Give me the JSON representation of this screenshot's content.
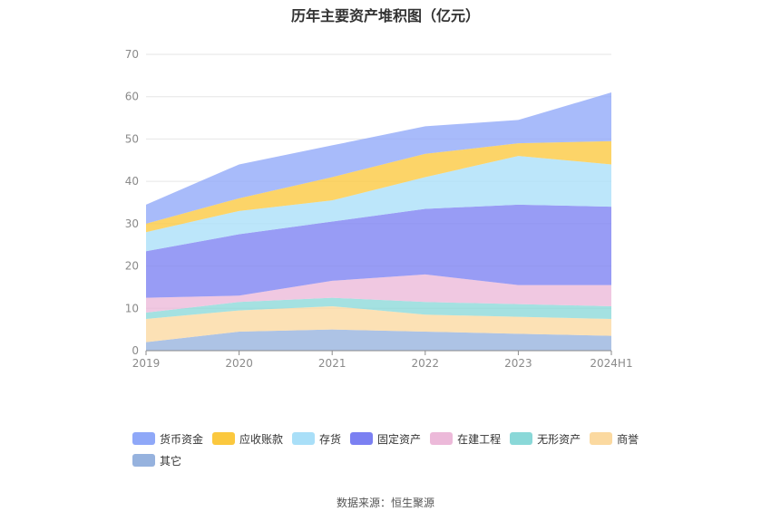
{
  "chart_data": {
    "type": "area",
    "title": "历年主要资产堆积图（亿元）",
    "stacked": true,
    "categories": [
      "2019",
      "2020",
      "2021",
      "2022",
      "2023",
      "2024H1"
    ],
    "ylim": [
      0,
      70
    ],
    "yticks": [
      0,
      10,
      20,
      30,
      40,
      50,
      60,
      70
    ],
    "grid": true,
    "legend_position": "bottom",
    "series": [
      {
        "name": "货币资金",
        "color": "#8fa8f8",
        "values": [
          4.5,
          8.0,
          7.5,
          6.5,
          5.5,
          11.5
        ]
      },
      {
        "name": "应收账款",
        "color": "#fbc83e",
        "values": [
          2.0,
          3.0,
          5.5,
          5.5,
          3.0,
          5.5
        ]
      },
      {
        "name": "存货",
        "color": "#a9dff8",
        "values": [
          4.5,
          5.5,
          5.0,
          7.5,
          11.5,
          10.0
        ]
      },
      {
        "name": "固定资产",
        "color": "#7b80f2",
        "values": [
          11.0,
          14.5,
          14.0,
          15.5,
          19.0,
          18.5
        ]
      },
      {
        "name": "在建工程",
        "color": "#ecb9d9",
        "values": [
          3.5,
          1.5,
          4.0,
          6.5,
          4.5,
          5.0
        ]
      },
      {
        "name": "无形资产",
        "color": "#8ad8d8",
        "values": [
          1.5,
          2.0,
          2.0,
          3.0,
          3.0,
          3.0
        ]
      },
      {
        "name": "商誉",
        "color": "#fbd9a0",
        "values": [
          5.5,
          5.0,
          5.5,
          4.0,
          4.0,
          4.0
        ]
      },
      {
        "name": "其它",
        "color": "#96b2de",
        "values": [
          2.0,
          4.5,
          5.0,
          4.5,
          4.0,
          3.5
        ]
      }
    ]
  },
  "source": "数据来源：恒生聚源"
}
